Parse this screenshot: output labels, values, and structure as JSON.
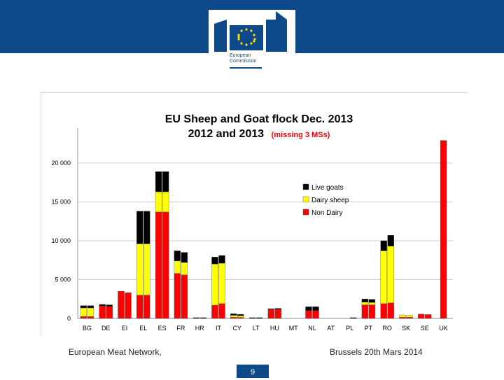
{
  "header": {
    "logo_line1": "European",
    "logo_line2": "Commission"
  },
  "footer": {
    "left_text": "European Meat Network,",
    "right_text": "Brussels 20th Mars 2014",
    "page_number": "9"
  },
  "colors": {
    "header_blue": "#0e4a8a",
    "non_dairy": "#ff0000",
    "dairy_sheep": "#ffff00",
    "live_goats": "#000000"
  },
  "chart_data": {
    "type": "bar",
    "stacked": true,
    "grouped_years": [
      "2012",
      "2013"
    ],
    "title_line1": "EU Sheep and Goat flock  Dec. 2013",
    "title_line2": "2012 and 2013",
    "title_note": "(missing 3 MSs)",
    "categories": [
      "BG",
      "DE",
      "EI",
      "EL",
      "ES",
      "FR",
      "HR",
      "IT",
      "CY",
      "LT",
      "HU",
      "MT",
      "NL",
      "AT",
      "PL",
      "PT",
      "RO",
      "SK",
      "SE",
      "UK"
    ],
    "yticks": [
      "0",
      "5 000",
      "10 000",
      "15 000",
      "20 000"
    ],
    "ytick_values": [
      0,
      5000,
      10000,
      15000,
      20000
    ],
    "ylim": [
      0,
      24500
    ],
    "grid": true,
    "legend_position": "right",
    "series": [
      {
        "name": "Non Dairy",
        "color": "#ff0000",
        "values_2012": [
          250,
          1600,
          3500,
          3000,
          13700,
          5800,
          0,
          1700,
          150,
          0,
          1150,
          0,
          1000,
          0,
          0,
          1750,
          1900,
          150,
          550,
          22900
        ],
        "values_2013": [
          250,
          1550,
          3300,
          3000,
          13700,
          5600,
          0,
          1900,
          130,
          0,
          1200,
          0,
          1000,
          0,
          0,
          1750,
          2000,
          150,
          500,
          0
        ]
      },
      {
        "name": "Dairy sheep",
        "color": "#ffff00",
        "values_2012": [
          1100,
          0,
          0,
          6600,
          2600,
          1600,
          0,
          5300,
          250,
          0,
          0,
          0,
          0,
          0,
          0,
          350,
          6800,
          300,
          0,
          0
        ],
        "values_2013": [
          1100,
          0,
          0,
          6600,
          2600,
          1600,
          0,
          5200,
          200,
          0,
          0,
          0,
          0,
          0,
          0,
          300,
          7300,
          250,
          0,
          0
        ]
      },
      {
        "name": "Live goats",
        "color": "#000000",
        "values_2012": [
          300,
          200,
          0,
          4200,
          2600,
          1300,
          100,
          900,
          200,
          100,
          100,
          0,
          500,
          0,
          0,
          400,
          1300,
          0,
          0,
          0
        ],
        "values_2013": [
          300,
          200,
          0,
          4200,
          2600,
          1300,
          100,
          1000,
          200,
          100,
          100,
          0,
          500,
          0,
          100,
          400,
          1400,
          0,
          0,
          0
        ]
      }
    ],
    "uk_single_bar": true
  }
}
